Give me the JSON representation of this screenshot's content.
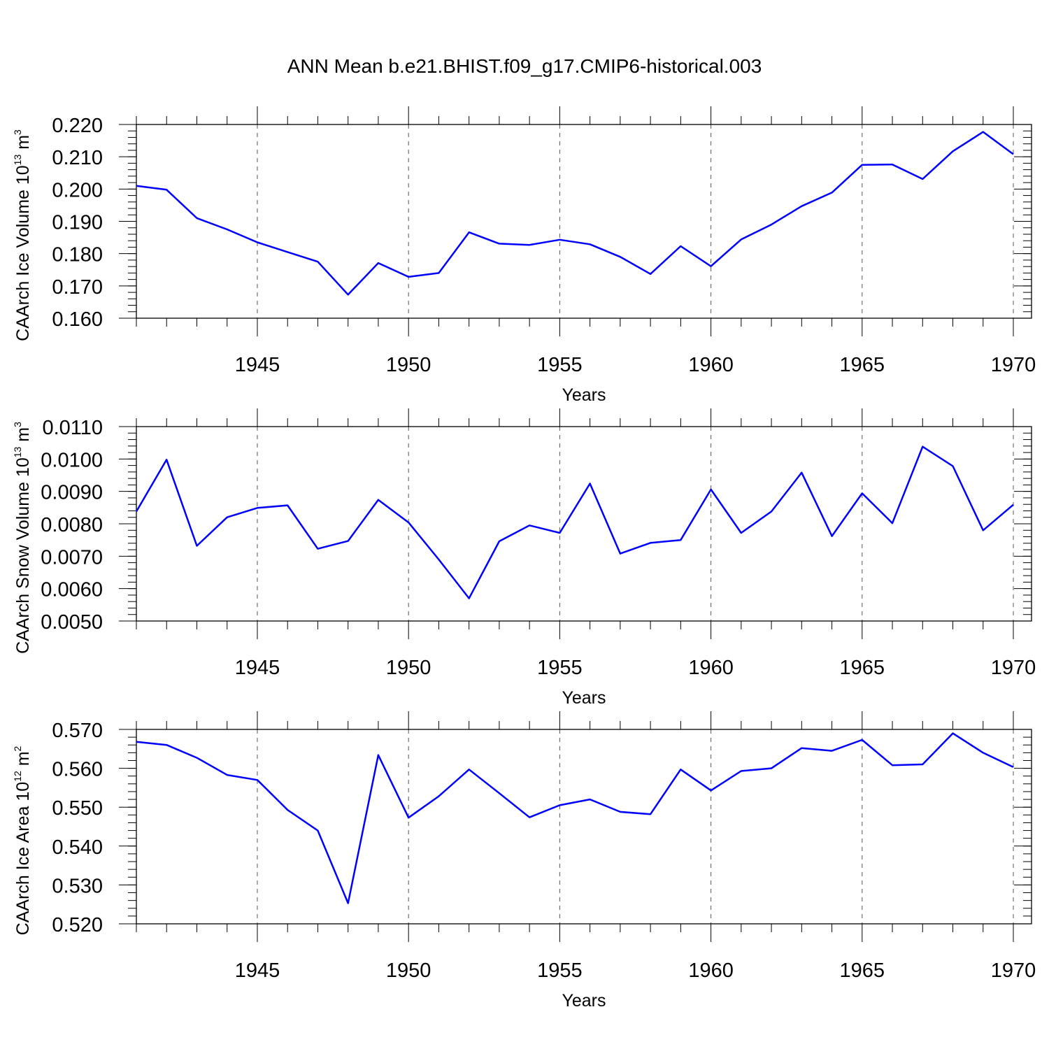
{
  "title": "ANN Mean b.e21.BHIST.f09_g17.CMIP6-historical.003",
  "colors": {
    "series": "#0000ff",
    "axis": "#000000",
    "grid": "#555555"
  },
  "chart_data": [
    {
      "type": "line",
      "name": "ice-volume",
      "ylabel": {
        "text": "CAArch Ice Volume 10",
        "exp": "13",
        "unit": " m",
        "unit_exp": "3"
      },
      "xlabel": "Years",
      "xlim": [
        1941,
        1970
      ],
      "ylim": [
        0.16,
        0.22
      ],
      "major_yticks": [
        0.16,
        0.17,
        0.18,
        0.19,
        0.2,
        0.21,
        0.22
      ],
      "ytick_labels": [
        "0.160",
        "0.170",
        "0.180",
        "0.190",
        "0.200",
        "0.210",
        "0.220"
      ],
      "minor_ystep": 0.002,
      "xticks": [
        1945,
        1950,
        1955,
        1960,
        1965,
        1970
      ],
      "xtick_labels": [
        "1945",
        "1950",
        "1955",
        "1960",
        "1965",
        "1970"
      ],
      "x": [
        1941,
        1942,
        1943,
        1944,
        1945,
        1946,
        1947,
        1948,
        1949,
        1950,
        1951,
        1952,
        1953,
        1954,
        1955,
        1956,
        1957,
        1958,
        1959,
        1960,
        1961,
        1962,
        1963,
        1964,
        1965,
        1966,
        1967,
        1968,
        1969,
        1970
      ],
      "values": [
        0.201,
        0.1998,
        0.191,
        0.1875,
        0.1835,
        0.1805,
        0.1775,
        0.1673,
        0.1771,
        0.1728,
        0.174,
        0.1866,
        0.1831,
        0.1827,
        0.1843,
        0.1829,
        0.179,
        0.1737,
        0.1823,
        0.1761,
        0.1844,
        0.189,
        0.1947,
        0.1989,
        0.2075,
        0.2076,
        0.2031,
        0.2117,
        0.2177,
        0.2108
      ]
    },
    {
      "type": "line",
      "name": "snow-volume",
      "ylabel": {
        "text": "CAArch Snow Volume 10",
        "exp": "13",
        "unit": " m",
        "unit_exp": "3"
      },
      "xlabel": "Years",
      "xlim": [
        1941,
        1970
      ],
      "ylim": [
        0.005,
        0.011
      ],
      "major_yticks": [
        0.005,
        0.006,
        0.007,
        0.008,
        0.009,
        0.01,
        0.011
      ],
      "ytick_labels": [
        "0.0050",
        "0.0060",
        "0.0070",
        "0.0080",
        "0.0090",
        "0.0100",
        "0.0110"
      ],
      "minor_ystep": 0.0002,
      "xticks": [
        1945,
        1950,
        1955,
        1960,
        1965,
        1970
      ],
      "xtick_labels": [
        "1945",
        "1950",
        "1955",
        "1960",
        "1965",
        "1970"
      ],
      "x": [
        1941,
        1942,
        1943,
        1944,
        1945,
        1946,
        1947,
        1948,
        1949,
        1950,
        1951,
        1952,
        1953,
        1954,
        1955,
        1956,
        1957,
        1958,
        1959,
        1960,
        1961,
        1962,
        1963,
        1964,
        1965,
        1966,
        1967,
        1968,
        1969,
        1970
      ],
      "values": [
        0.00838,
        0.00998,
        0.00732,
        0.0082,
        0.00849,
        0.00857,
        0.00723,
        0.00747,
        0.00874,
        0.00804,
        0.0069,
        0.0057,
        0.00746,
        0.00795,
        0.00772,
        0.00924,
        0.00708,
        0.00741,
        0.0075,
        0.00906,
        0.00772,
        0.00838,
        0.00958,
        0.00762,
        0.00894,
        0.00802,
        0.01038,
        0.00978,
        0.0078,
        0.00859
      ]
    },
    {
      "type": "line",
      "name": "ice-area",
      "ylabel": {
        "text": "CAArch Ice Area 10",
        "exp": "12",
        "unit": " m",
        "unit_exp": "2"
      },
      "xlabel": "Years",
      "xlim": [
        1941,
        1970
      ],
      "ylim": [
        0.52,
        0.57
      ],
      "major_yticks": [
        0.52,
        0.53,
        0.54,
        0.55,
        0.56,
        0.57
      ],
      "ytick_labels": [
        "0.520",
        "0.530",
        "0.540",
        "0.550",
        "0.560",
        "0.570"
      ],
      "minor_ystep": 0.002,
      "xticks": [
        1945,
        1950,
        1955,
        1960,
        1965,
        1970
      ],
      "xtick_labels": [
        "1945",
        "1950",
        "1955",
        "1960",
        "1965",
        "1970"
      ],
      "x": [
        1941,
        1942,
        1943,
        1944,
        1945,
        1946,
        1947,
        1948,
        1949,
        1950,
        1951,
        1952,
        1953,
        1954,
        1955,
        1956,
        1957,
        1958,
        1959,
        1960,
        1961,
        1962,
        1963,
        1964,
        1965,
        1966,
        1967,
        1968,
        1969,
        1970
      ],
      "values": [
        0.5668,
        0.566,
        0.5627,
        0.5583,
        0.557,
        0.5493,
        0.544,
        0.5253,
        0.5634,
        0.5473,
        0.5528,
        0.5597,
        0.5536,
        0.5474,
        0.5505,
        0.552,
        0.5488,
        0.5482,
        0.5597,
        0.5543,
        0.5593,
        0.56,
        0.5652,
        0.5645,
        0.5673,
        0.5608,
        0.561,
        0.569,
        0.564,
        0.5603
      ]
    }
  ]
}
